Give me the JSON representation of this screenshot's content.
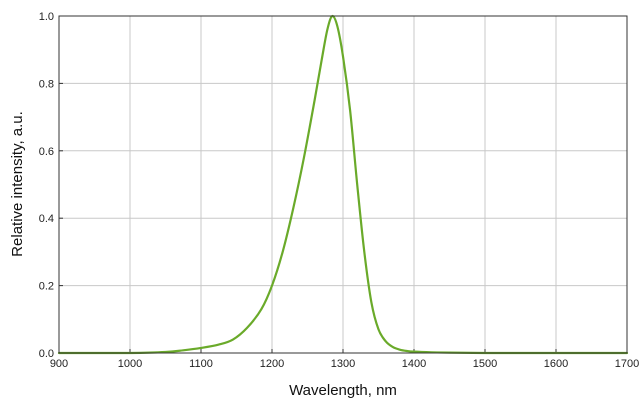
{
  "chart_data": {
    "type": "line",
    "title": "",
    "xlabel": "Wavelength, nm",
    "ylabel": "Relative intensity, a.u.",
    "xlim": [
      900,
      1700
    ],
    "ylim": [
      0,
      1.0
    ],
    "x_ticks": [
      "900",
      "1000",
      "1100",
      "1200",
      "1300",
      "1400",
      "1500",
      "1600",
      "1700"
    ],
    "y_ticks": [
      "0.0",
      "0.2",
      "0.4",
      "0.6",
      "0.8",
      "1.0"
    ],
    "grid": true,
    "line_color": "#6aaa2a",
    "series": [
      {
        "x": [
          900,
          950,
          1000,
          1050,
          1075,
          1100,
          1125,
          1145,
          1165,
          1185,
          1200,
          1215,
          1230,
          1245,
          1260,
          1270,
          1278,
          1285,
          1292,
          1300,
          1310,
          1320,
          1330,
          1340,
          1350,
          1360,
          1370,
          1380,
          1390,
          1400,
          1425,
          1450,
          1500,
          1550,
          1600,
          1650,
          1700
        ],
        "y": [
          0.0,
          0.0,
          0.0,
          0.003,
          0.008,
          0.015,
          0.025,
          0.04,
          0.075,
          0.13,
          0.2,
          0.3,
          0.43,
          0.58,
          0.75,
          0.87,
          0.96,
          1.0,
          0.97,
          0.88,
          0.72,
          0.5,
          0.3,
          0.15,
          0.07,
          0.035,
          0.018,
          0.01,
          0.006,
          0.004,
          0.002,
          0.001,
          0.0,
          0.0,
          0.0,
          0.0,
          0.0
        ]
      }
    ]
  }
}
